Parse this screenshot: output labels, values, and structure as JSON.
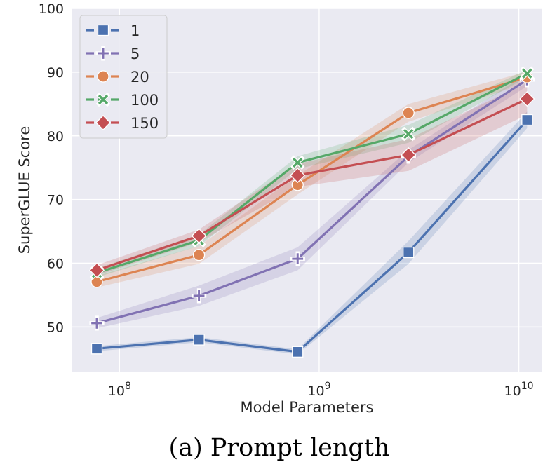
{
  "chart_data": {
    "type": "line",
    "xscale": "log",
    "xlabel": "Model Parameters",
    "ylabel": "SuperGLUE Score",
    "xlim": [
      58000000,
      13000000000
    ],
    "ylim": [
      43,
      100
    ],
    "yticks": [
      50,
      60,
      70,
      80,
      90,
      100
    ],
    "xticks": [
      {
        "value": 100000000,
        "base": "10",
        "exp": "8"
      },
      {
        "value": 1000000000,
        "base": "10",
        "exp": "9"
      },
      {
        "value": 10000000000,
        "base": "10",
        "exp": "10"
      }
    ],
    "grid": true,
    "legend_position": "top-left",
    "x": [
      77000000,
      250000000,
      780000000,
      2800000000,
      11000000000
    ],
    "series": [
      {
        "name": "1",
        "color": "#4c72b0",
        "marker": "square",
        "values": [
          46.6,
          48.0,
          46.1,
          61.7,
          82.5
        ],
        "band": [
          0.4,
          0.4,
          0.4,
          1.8,
          1.3
        ]
      },
      {
        "name": "5",
        "color": "#8172b3",
        "marker": "plus",
        "values": [
          50.6,
          54.9,
          60.7,
          76.8,
          88.8
        ],
        "band": [
          0.8,
          1.6,
          1.8,
          1.0,
          1.0
        ]
      },
      {
        "name": "20",
        "color": "#dd8452",
        "marker": "circle",
        "values": [
          57.1,
          61.3,
          72.3,
          83.6,
          89.2
        ],
        "band": [
          0.9,
          1.4,
          1.5,
          1.4,
          0.9
        ]
      },
      {
        "name": "100",
        "color": "#55a868",
        "marker": "x",
        "values": [
          58.5,
          63.6,
          75.8,
          80.3,
          89.8
        ],
        "band": [
          0.7,
          0.9,
          1.0,
          1.4,
          0.6
        ]
      },
      {
        "name": "150",
        "color": "#c44e52",
        "marker": "diamond",
        "values": [
          58.9,
          64.3,
          73.8,
          77.0,
          85.8
        ],
        "band": [
          0.8,
          1.0,
          1.8,
          2.5,
          2.5
        ]
      }
    ]
  },
  "caption": "(a) Prompt length"
}
